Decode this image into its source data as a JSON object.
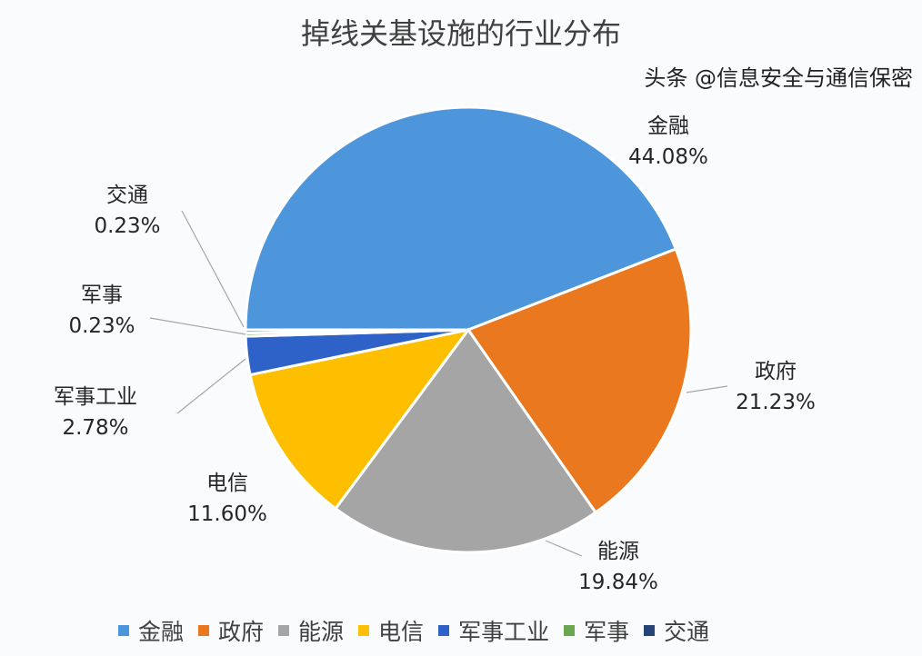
{
  "chart_data": {
    "type": "pie",
    "title": "掉线关基设施的行业分布",
    "categories": [
      "金融",
      "政府",
      "能源",
      "电信",
      "军事工业",
      "军事",
      "交通"
    ],
    "values": [
      44.08,
      21.23,
      19.84,
      11.6,
      2.78,
      0.23,
      0.23
    ],
    "labels": [
      "44.08%",
      "21.23%",
      "19.84%",
      "11.60%",
      "2.78%",
      "0.23%",
      "0.23%"
    ],
    "colors": [
      "#4e96dc",
      "#e9781f",
      "#a5a5a5",
      "#fdbf00",
      "#2f62c8",
      "#6aa84f",
      "#264478"
    ],
    "legend": "bottom"
  },
  "watermark": "头条 @信息安全与通信保密"
}
